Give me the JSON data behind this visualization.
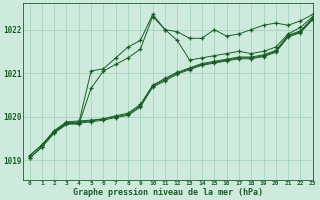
{
  "title": "Graphe pression niveau de la mer (hPa)",
  "bg_color": "#ceeadc",
  "grid_color": "#9ecfb4",
  "line_color": "#1a5c28",
  "xlim": [
    -0.5,
    23
  ],
  "ylim": [
    1018.55,
    1022.6
  ],
  "yticks": [
    1019,
    1020,
    1021,
    1022
  ],
  "xticks": [
    0,
    1,
    2,
    3,
    4,
    5,
    6,
    7,
    8,
    9,
    10,
    11,
    12,
    13,
    14,
    15,
    16,
    17,
    18,
    19,
    20,
    21,
    22,
    23
  ],
  "series": [
    {
      "x": [
        0,
        1,
        2,
        3,
        4,
        5,
        6,
        7,
        8,
        9,
        10,
        11,
        12,
        13,
        14,
        15,
        16,
        17,
        18,
        19,
        20,
        21,
        22,
        23
      ],
      "y": [
        1019.05,
        1019.3,
        1019.65,
        1019.85,
        1019.85,
        1021.05,
        1021.1,
        1021.35,
        1021.6,
        1021.75,
        1022.35,
        1022.0,
        1021.95,
        1021.8,
        1021.8,
        1022.0,
        1021.85,
        1021.9,
        1022.0,
        1022.1,
        1022.15,
        1022.1,
        1022.2,
        1022.35
      ]
    },
    {
      "x": [
        2,
        3,
        4,
        5,
        6,
        7,
        8,
        9,
        10,
        11,
        12,
        13,
        14,
        15,
        16,
        17,
        18,
        19,
        20,
        21,
        22,
        23
      ],
      "y": [
        1019.65,
        1019.85,
        1019.82,
        1020.65,
        1021.05,
        1021.2,
        1021.35,
        1021.55,
        1022.3,
        1022.0,
        1021.75,
        1021.3,
        1021.35,
        1021.4,
        1021.45,
        1021.5,
        1021.45,
        1021.5,
        1021.6,
        1021.9,
        1022.05,
        1022.3
      ]
    },
    {
      "x": [
        0,
        1,
        2,
        3,
        4,
        5,
        6,
        7,
        8,
        9,
        10,
        11,
        12,
        13,
        14,
        15,
        16,
        17,
        18,
        19,
        20,
        21,
        22,
        23
      ],
      "y": [
        1019.1,
        1019.35,
        1019.65,
        1019.85,
        1019.88,
        1019.9,
        1019.95,
        1020.0,
        1020.05,
        1020.25,
        1020.7,
        1020.85,
        1021.0,
        1021.1,
        1021.2,
        1021.25,
        1021.3,
        1021.35,
        1021.35,
        1021.4,
        1021.5,
        1021.85,
        1021.95,
        1022.25
      ]
    },
    {
      "x": [
        0,
        1,
        2,
        3,
        4,
        5,
        6,
        7,
        8,
        9,
        10,
        11,
        12,
        13,
        14,
        15,
        16,
        17,
        18,
        19,
        20,
        21,
        22,
        23
      ],
      "y": [
        1019.1,
        1019.35,
        1019.68,
        1019.88,
        1019.9,
        1019.92,
        1019.95,
        1020.02,
        1020.08,
        1020.28,
        1020.72,
        1020.88,
        1021.02,
        1021.12,
        1021.22,
        1021.27,
        1021.32,
        1021.37,
        1021.37,
        1021.42,
        1021.52,
        1021.87,
        1021.97,
        1022.27
      ]
    },
    {
      "x": [
        0,
        1,
        2,
        3,
        4,
        5,
        6,
        7,
        8,
        9,
        10,
        11,
        12,
        13,
        14,
        15,
        16,
        17,
        18,
        19,
        20,
        21,
        22,
        23
      ],
      "y": [
        1019.05,
        1019.3,
        1019.62,
        1019.82,
        1019.85,
        1019.88,
        1019.92,
        1019.98,
        1020.03,
        1020.22,
        1020.68,
        1020.82,
        1020.98,
        1021.08,
        1021.18,
        1021.23,
        1021.28,
        1021.33,
        1021.33,
        1021.38,
        1021.48,
        1021.83,
        1021.93,
        1022.23
      ]
    }
  ]
}
